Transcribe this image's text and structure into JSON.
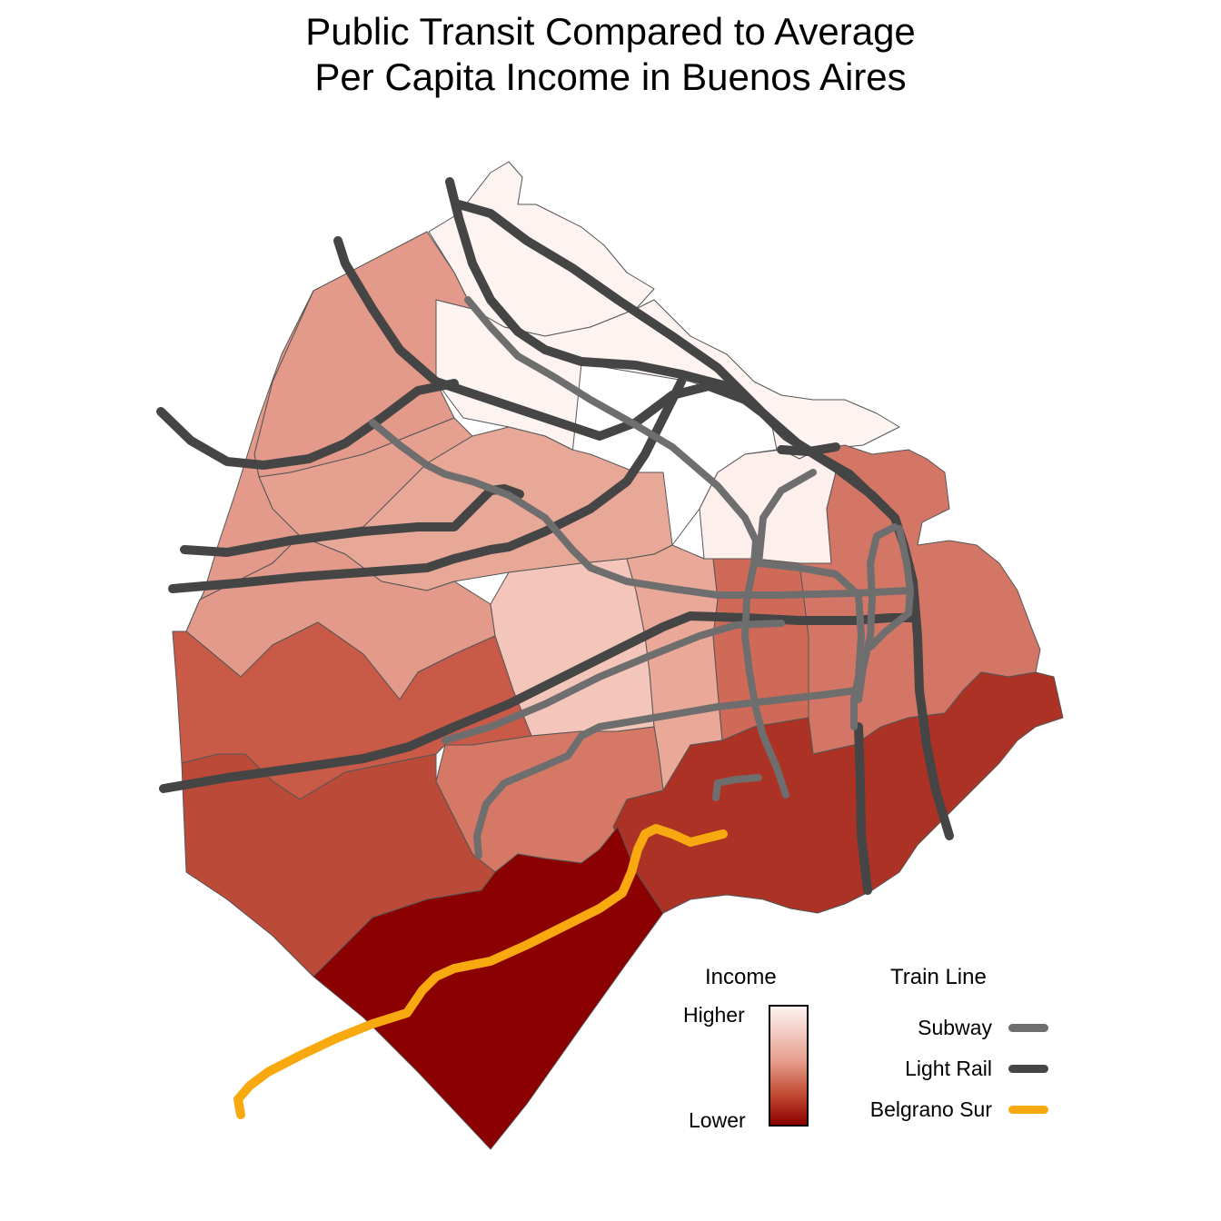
{
  "title": {
    "line1": "Public Transit Compared to Average",
    "line2": "Per Capita Income in Buenos Aires"
  },
  "colors": {
    "income_high": "#fdf3f1",
    "income_low": "#8b0000",
    "subway": "#6e6e6e",
    "light_rail": "#454545",
    "belgrano_sur": "#f7a90f",
    "district_border": "#555555"
  },
  "legend": {
    "income": {
      "title": "Income",
      "higher_label": "Higher",
      "lower_label": "Lower"
    },
    "train_line": {
      "title": "Train Line",
      "items": [
        {
          "label": "Subway",
          "color": "#6e6e6e"
        },
        {
          "label": "Light Rail",
          "color": "#454545"
        },
        {
          "label": "Belgrano Sur",
          "color": "#f7a90f"
        }
      ]
    }
  }
}
